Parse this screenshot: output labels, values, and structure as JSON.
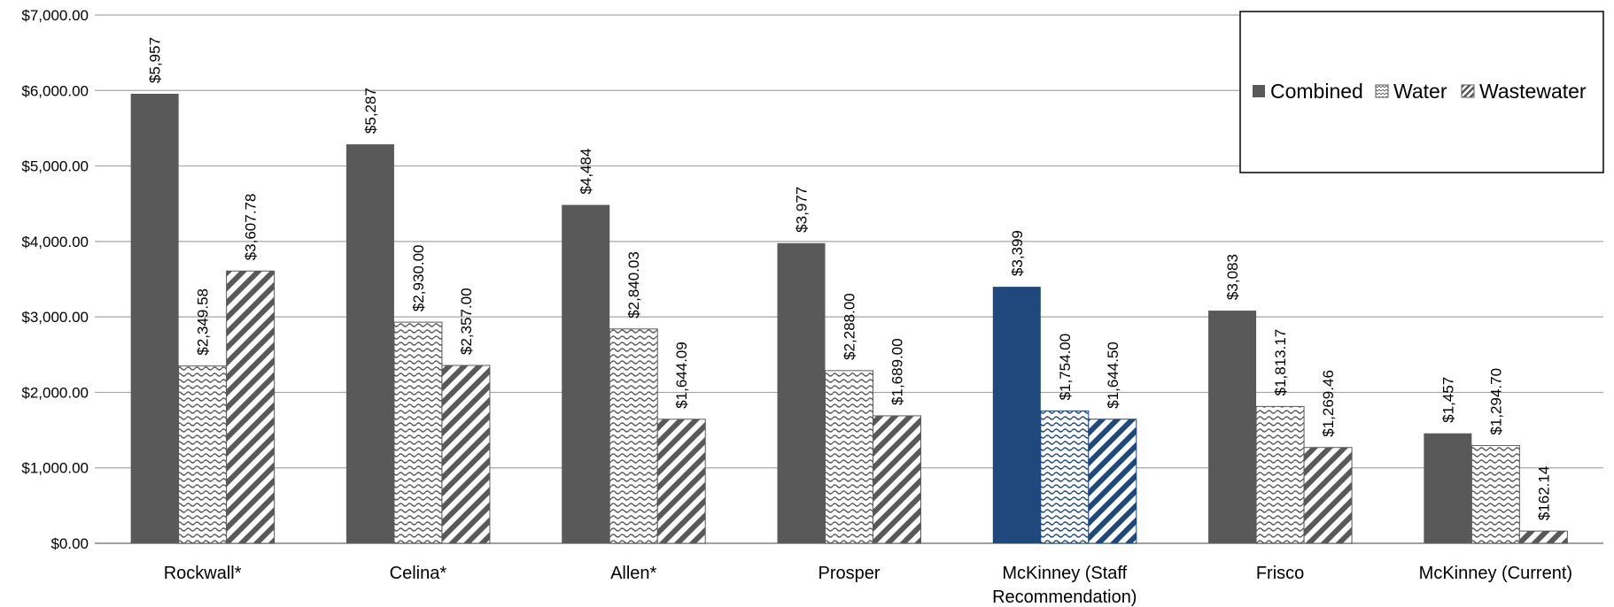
{
  "chart_data": {
    "type": "bar",
    "categories": [
      "Rockwall*",
      "Celina*",
      "Allen*",
      "Prosper",
      "McKinney (Staff Recommendation)",
      "Frisco",
      "McKinney (Current)"
    ],
    "category_lines": [
      [
        "Rockwall*"
      ],
      [
        "Celina*"
      ],
      [
        "Allen*"
      ],
      [
        "Prosper"
      ],
      [
        "McKinney (Staff",
        "Recommendation)"
      ],
      [
        "Frisco"
      ],
      [
        "McKinney (Current)"
      ]
    ],
    "series": [
      {
        "name": "Combined",
        "values": [
          5957,
          5287,
          4484,
          3977,
          3399,
          3083,
          1457
        ],
        "labels": [
          "$5,957",
          "$5,287",
          "$4,484",
          "$3,977",
          "$3,399",
          "$3,083",
          "$1,457"
        ]
      },
      {
        "name": "Water",
        "values": [
          2349.58,
          2930.0,
          2840.03,
          2288.0,
          1754.0,
          1813.17,
          1294.7
        ],
        "labels": [
          "$2,349.58",
          "$2,930.00",
          "$2,840.03",
          "$2,288.00",
          "$1,754.00",
          "$1,813.17",
          "$1,294.70"
        ]
      },
      {
        "name": "Wastewater",
        "values": [
          3607.78,
          2357.0,
          1644.09,
          1689.0,
          1644.5,
          1269.46,
          162.14
        ],
        "labels": [
          "$3,607.78",
          "$2,357.00",
          "$1,644.09",
          "$1,689.00",
          "$1,644.50",
          "$1,269.46",
          "$162.14"
        ]
      }
    ],
    "y_ticks": [
      0,
      1000,
      2000,
      3000,
      4000,
      5000,
      6000,
      7000
    ],
    "y_tick_labels": [
      "$0.00",
      "$1,000.00",
      "$2,000.00",
      "$3,000.00",
      "$4,000.00",
      "$5,000.00",
      "$6,000.00",
      "$7,000.00"
    ],
    "ylim": [
      0,
      7000
    ],
    "grid": true,
    "legend_position": "top-right",
    "highlight_category": "McKinney (Staff Recommendation)",
    "colors": {
      "bar_dark": "#595959",
      "highlight": "#1f497d",
      "grid": "#a6a6a6",
      "axis": "#808080"
    },
    "title": "",
    "xlabel": "",
    "ylabel": ""
  }
}
